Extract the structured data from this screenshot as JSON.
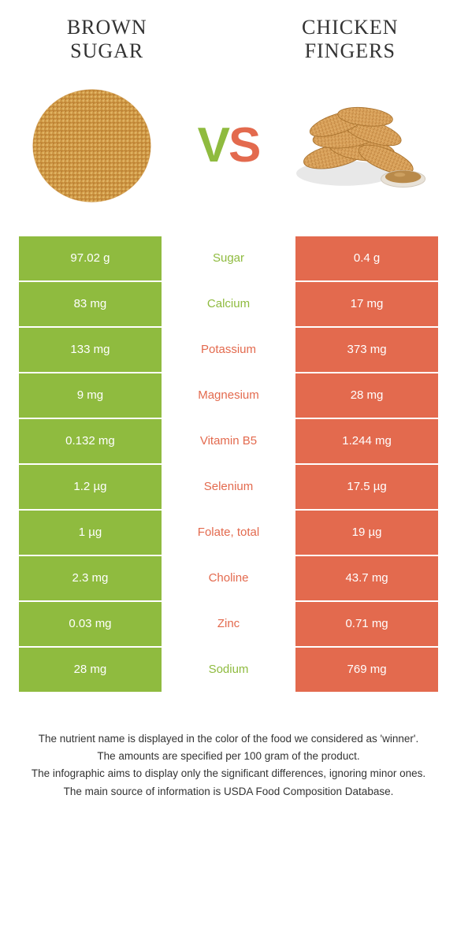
{
  "colors": {
    "green": "#8fbb3f",
    "orange": "#e36a4e",
    "text": "#333333",
    "white": "#ffffff"
  },
  "header": {
    "left_title_line1": "BROWN",
    "left_title_line2": "SUGAR",
    "right_title_line1": "CHICKEN",
    "right_title_line2": "FINGERS",
    "vs_v": "V",
    "vs_s": "S"
  },
  "rows": [
    {
      "left": "97.02 g",
      "name": "Sugar",
      "right": "0.4 g",
      "winner": "left"
    },
    {
      "left": "83 mg",
      "name": "Calcium",
      "right": "17 mg",
      "winner": "left"
    },
    {
      "left": "133 mg",
      "name": "Potassium",
      "right": "373 mg",
      "winner": "right"
    },
    {
      "left": "9 mg",
      "name": "Magnesium",
      "right": "28 mg",
      "winner": "right"
    },
    {
      "left": "0.132 mg",
      "name": "Vitamin B5",
      "right": "1.244 mg",
      "winner": "right"
    },
    {
      "left": "1.2 µg",
      "name": "Selenium",
      "right": "17.5 µg",
      "winner": "right"
    },
    {
      "left": "1 µg",
      "name": "Folate, total",
      "right": "19 µg",
      "winner": "right"
    },
    {
      "left": "2.3 mg",
      "name": "Choline",
      "right": "43.7 mg",
      "winner": "right"
    },
    {
      "left": "0.03 mg",
      "name": "Zinc",
      "right": "0.71 mg",
      "winner": "right"
    },
    {
      "left": "28 mg",
      "name": "Sodium",
      "right": "769 mg",
      "winner": "left"
    }
  ],
  "footnotes": [
    "The nutrient name is displayed in the color of the food we considered as 'winner'.",
    "The amounts are specified per 100 gram of the product.",
    "The infographic aims to display only the significant differences, ignoring minor ones.",
    "The main source of information is USDA Food Composition Database."
  ]
}
